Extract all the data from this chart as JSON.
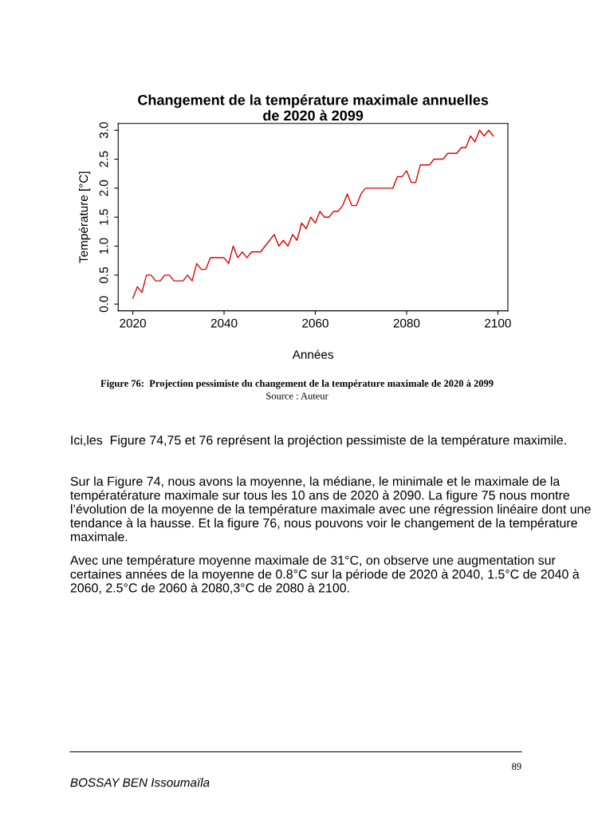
{
  "chart_data": {
    "type": "line",
    "title": "Changement de la température maximale annuelles\nde 2020 à 2099",
    "xlabel": "Années",
    "ylabel": "Température [°C]",
    "x": [
      2020,
      2021,
      2022,
      2023,
      2024,
      2025,
      2026,
      2027,
      2028,
      2029,
      2030,
      2031,
      2032,
      2033,
      2034,
      2035,
      2036,
      2037,
      2038,
      2039,
      2040,
      2041,
      2042,
      2043,
      2044,
      2045,
      2046,
      2047,
      2048,
      2049,
      2050,
      2051,
      2052,
      2053,
      2054,
      2055,
      2056,
      2057,
      2058,
      2059,
      2060,
      2061,
      2062,
      2063,
      2064,
      2065,
      2066,
      2067,
      2068,
      2069,
      2070,
      2071,
      2072,
      2073,
      2074,
      2075,
      2076,
      2077,
      2078,
      2079,
      2080,
      2081,
      2082,
      2083,
      2084,
      2085,
      2086,
      2087,
      2088,
      2089,
      2090,
      2091,
      2092,
      2093,
      2094,
      2095,
      2096,
      2097,
      2098,
      2099
    ],
    "series": [
      {
        "color": "#e00000",
        "values": [
          0.1,
          0.3,
          0.2,
          0.5,
          0.5,
          0.4,
          0.4,
          0.5,
          0.5,
          0.4,
          0.4,
          0.4,
          0.5,
          0.4,
          0.7,
          0.6,
          0.6,
          0.8,
          0.8,
          0.8,
          0.8,
          0.7,
          1.0,
          0.8,
          0.9,
          0.8,
          0.9,
          0.9,
          0.9,
          1.0,
          1.1,
          1.2,
          1.0,
          1.1,
          1.0,
          1.2,
          1.1,
          1.4,
          1.3,
          1.5,
          1.4,
          1.6,
          1.5,
          1.5,
          1.6,
          1.6,
          1.7,
          1.9,
          1.7,
          1.7,
          1.9,
          2.0,
          2.0,
          2.0,
          2.0,
          2.0,
          2.0,
          2.0,
          2.2,
          2.2,
          2.3,
          2.1,
          2.1,
          2.4,
          2.4,
          2.4,
          2.5,
          2.5,
          2.5,
          2.6,
          2.6,
          2.6,
          2.7,
          2.7,
          2.9,
          2.8,
          3.0,
          2.9,
          3.0,
          2.9
        ]
      }
    ],
    "xlim": [
      2016.8,
      2102.2
    ],
    "ylim": [
      -0.116,
      3.116
    ],
    "xticks": [
      2020,
      2040,
      2060,
      2080,
      2100
    ],
    "yticks": [
      {
        "value": 0,
        "label": "0.0"
      },
      {
        "value": 0.5,
        "label": "0.5"
      },
      {
        "value": 1,
        "label": "1.0"
      },
      {
        "value": 1.5,
        "label": "1.5"
      },
      {
        "value": 2,
        "label": "2.0"
      },
      {
        "value": 2.5,
        "label": "2.5"
      },
      {
        "value": 3,
        "label": "3.0"
      }
    ],
    "grid": false,
    "legend": false,
    "line_style": "solid",
    "marker": "none",
    "annotations": [
      "Figure 76:  Projection pessimiste du changement de la température maximale de 2020 à 2099",
      "Source : Auteur",
      "Ici,les  Figure 74,75 et 76 représent la projéction pessimiste de la température maximile.",
      "Sur la Figure 74, nous avons la moyenne, la médiane, le minimale et le maximale de la températérature maximale sur tous les 10 ans de 2020 à 2090. La figure 75 nous montre l’évolution de la moyenne de la température maximale avec une régression linéaire dont une tendance à la hausse. Et la figure 76, nous pouvons voir le changement de la température maximale.",
      "Avec une température moyenne maximale de 31°C, on observe une augmentation sur certaines années de la moyenne de 0.8°C sur la période de 2020 à 2040, 1.5°C de 2040 à 2060, 2.5°C de 2060 à 2080,3°C de 2080 à 2100.",
      "89",
      "BOSSAY BEN Issoumaïla"
    ]
  }
}
